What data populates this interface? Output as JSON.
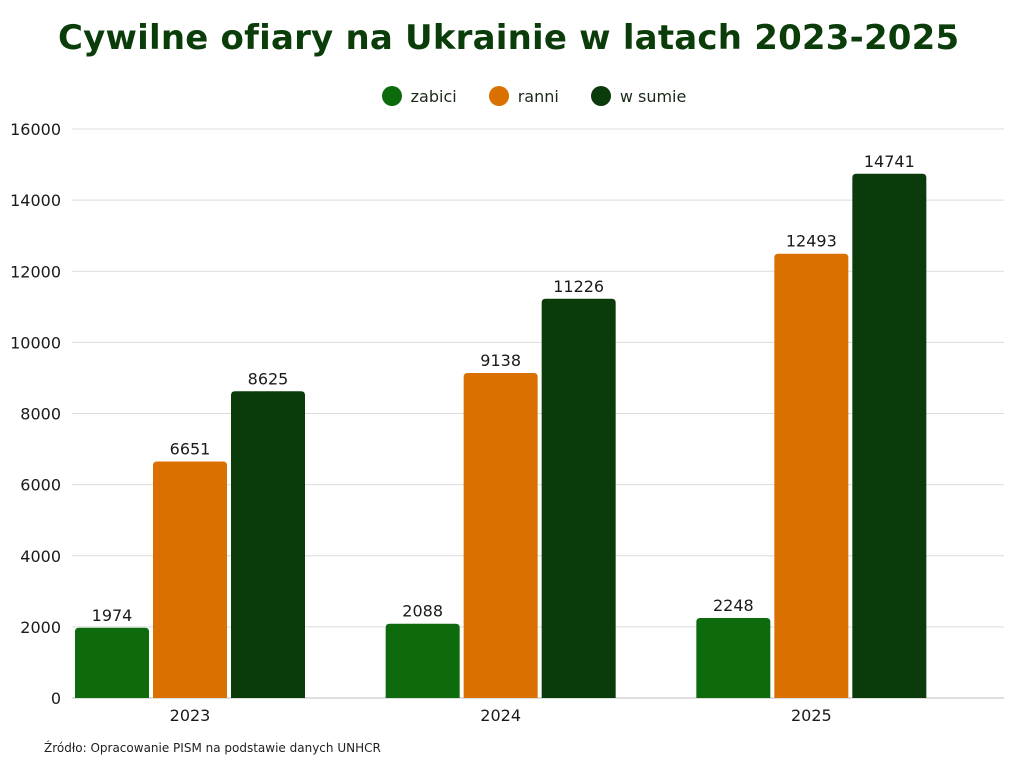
{
  "chart_data": {
    "type": "bar",
    "title": "Cywilne ofiary na Ukrainie w latach 2023-2025",
    "categories": [
      "2023",
      "2024",
      "2025"
    ],
    "series": [
      {
        "name": "zabici",
        "values": [
          1974,
          2088,
          2248
        ],
        "color": "#0d6a0d"
      },
      {
        "name": "ranni",
        "values": [
          6651,
          9138,
          12493
        ],
        "color": "#d97000"
      },
      {
        "name": "w sumie",
        "values": [
          8625,
          11226,
          14741
        ],
        "color": "#0b3a0b"
      }
    ],
    "ylim": [
      0,
      16000
    ],
    "yticks": [
      0,
      2000,
      4000,
      6000,
      8000,
      10000,
      12000,
      14000,
      16000
    ],
    "grid": true,
    "legend_position": "top-center",
    "xlabel": "",
    "ylabel": "",
    "source": "Źródło: Opracowanie PISM na podstawie danych UNHCR"
  }
}
